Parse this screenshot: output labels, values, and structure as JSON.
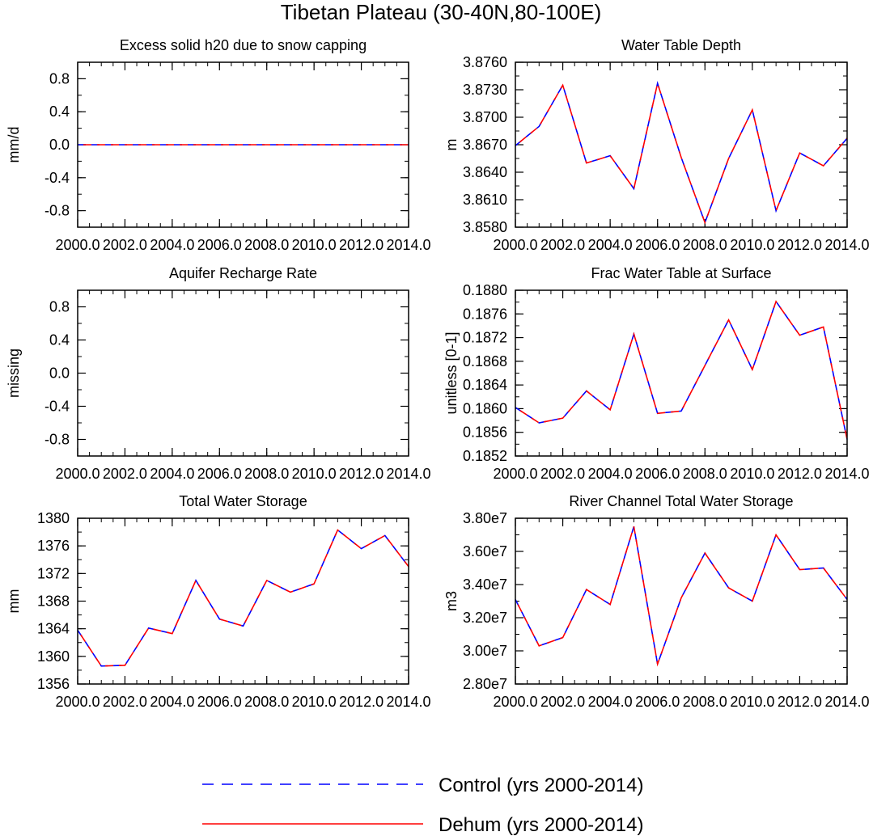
{
  "figure": {
    "title": "Tibetan Plateau (30-40N,80-100E)",
    "legend": [
      {
        "label": "Control (yrs 2000-2014)",
        "color": "#0000ff",
        "style": "dashed"
      },
      {
        "label": "Dehum (yrs 2000-2014)",
        "color": "#ff0000",
        "style": "solid"
      }
    ]
  },
  "chart_data": [
    {
      "type": "line",
      "title": "Excess solid h20 due to snow capping",
      "ylabel": "mm/d",
      "xlim": [
        2000,
        2014
      ],
      "ylim": [
        -1.0,
        1.0
      ],
      "xticks": [
        "2000.0",
        "2002.0",
        "2004.0",
        "2006.0",
        "2008.0",
        "2010.0",
        "2012.0",
        "2014.0"
      ],
      "yticks": [
        -0.8,
        -0.4,
        0.0,
        0.4,
        0.8
      ],
      "ytick_labels": [
        "-0.8",
        "-0.4",
        "0.0",
        "0.4",
        "0.8"
      ],
      "x": [
        2000,
        2001,
        2002,
        2003,
        2004,
        2005,
        2006,
        2007,
        2008,
        2009,
        2010,
        2011,
        2012,
        2013,
        2014
      ],
      "series": [
        {
          "name": "Control (yrs 2000-2014)",
          "values": [
            0,
            0,
            0,
            0,
            0,
            0,
            0,
            0,
            0,
            0,
            0,
            0,
            0,
            0,
            0
          ]
        },
        {
          "name": "Dehum (yrs 2000-2014)",
          "values": [
            0,
            0,
            0,
            0,
            0,
            0,
            0,
            0,
            0,
            0,
            0,
            0,
            0,
            0,
            0
          ]
        }
      ]
    },
    {
      "type": "line",
      "title": "Water Table Depth",
      "ylabel": "m",
      "xlim": [
        2000,
        2014
      ],
      "ylim": [
        3.858,
        3.876
      ],
      "xticks": [
        "2000.0",
        "2002.0",
        "2004.0",
        "2006.0",
        "2008.0",
        "2010.0",
        "2012.0",
        "2014.0"
      ],
      "yticks": [
        3.858,
        3.861,
        3.864,
        3.867,
        3.87,
        3.873,
        3.876
      ],
      "ytick_labels": [
        "3.8580",
        "3.8610",
        "3.8640",
        "3.8670",
        "3.8700",
        "3.8730",
        "3.8760"
      ],
      "x": [
        2000,
        2001,
        2002,
        2003,
        2004,
        2005,
        2006,
        2007,
        2008,
        2009,
        2010,
        2011,
        2012,
        2013,
        2014
      ],
      "series": [
        {
          "name": "Control (yrs 2000-2014)",
          "values": [
            3.8669,
            3.869,
            3.8735,
            3.865,
            3.8658,
            3.8622,
            3.8737,
            3.8656,
            3.8585,
            3.8655,
            3.8708,
            3.8598,
            3.8661,
            3.8647,
            3.8677
          ]
        },
        {
          "name": "Dehum (yrs 2000-2014)",
          "values": [
            3.8669,
            3.869,
            3.8735,
            3.865,
            3.8658,
            3.8622,
            3.8737,
            3.8656,
            3.8585,
            3.8655,
            3.8708,
            3.8598,
            3.8661,
            3.8647,
            3.8677
          ]
        }
      ]
    },
    {
      "type": "line",
      "title": "Aquifer Recharge Rate",
      "ylabel": "missing",
      "xlim": [
        2000,
        2014
      ],
      "ylim": [
        -1.0,
        1.0
      ],
      "xticks": [
        "2000.0",
        "2002.0",
        "2004.0",
        "2006.0",
        "2008.0",
        "2010.0",
        "2012.0",
        "2014.0"
      ],
      "yticks": [
        -0.8,
        -0.4,
        0.0,
        0.4,
        0.8
      ],
      "ytick_labels": [
        "-0.8",
        "-0.4",
        "0.0",
        "0.4",
        "0.8"
      ],
      "x": [],
      "series": []
    },
    {
      "type": "line",
      "title": "Frac Water Table at Surface",
      "ylabel": "unitless [0-1]",
      "xlim": [
        2000,
        2014
      ],
      "ylim": [
        0.1852,
        0.188
      ],
      "xticks": [
        "2000.0",
        "2002.0",
        "2004.0",
        "2006.0",
        "2008.0",
        "2010.0",
        "2012.0",
        "2014.0"
      ],
      "yticks": [
        0.1852,
        0.1856,
        0.186,
        0.1864,
        0.1868,
        0.1872,
        0.1876,
        0.188
      ],
      "ytick_labels": [
        "0.1852",
        "0.1856",
        "0.1860",
        "0.1864",
        "0.1868",
        "0.1872",
        "0.1876",
        "0.1880"
      ],
      "x": [
        2000,
        2001,
        2002,
        2003,
        2004,
        2005,
        2006,
        2007,
        2008,
        2009,
        2010,
        2011,
        2012,
        2013,
        2014
      ],
      "series": [
        {
          "name": "Control (yrs 2000-2014)",
          "values": [
            0.18602,
            0.18576,
            0.18584,
            0.1863,
            0.18598,
            0.18726,
            0.18592,
            0.18596,
            0.18673,
            0.1875,
            0.18666,
            0.18781,
            0.18724,
            0.18738,
            0.18548
          ]
        },
        {
          "name": "Dehum (yrs 2000-2014)",
          "values": [
            0.18602,
            0.18576,
            0.18584,
            0.1863,
            0.18598,
            0.18726,
            0.18592,
            0.18596,
            0.18673,
            0.1875,
            0.18666,
            0.18781,
            0.18724,
            0.18738,
            0.18548
          ]
        }
      ]
    },
    {
      "type": "line",
      "title": "Total Water Storage",
      "ylabel": "mm",
      "xlim": [
        2000,
        2014
      ],
      "ylim": [
        1356,
        1380
      ],
      "xticks": [
        "2000.0",
        "2002.0",
        "2004.0",
        "2006.0",
        "2008.0",
        "2010.0",
        "2012.0",
        "2014.0"
      ],
      "yticks": [
        1356,
        1360,
        1364,
        1368,
        1372,
        1376,
        1380
      ],
      "ytick_labels": [
        "1356",
        "1360",
        "1364",
        "1368",
        "1372",
        "1376",
        "1380"
      ],
      "x": [
        2000,
        2001,
        2002,
        2003,
        2004,
        2005,
        2006,
        2007,
        2008,
        2009,
        2010,
        2011,
        2012,
        2013,
        2014
      ],
      "series": [
        {
          "name": "Control (yrs 2000-2014)",
          "values": [
            1363.8,
            1358.6,
            1358.7,
            1364.1,
            1363.3,
            1371.0,
            1365.4,
            1364.4,
            1371.0,
            1369.3,
            1370.5,
            1378.3,
            1375.6,
            1377.5,
            1373.0
          ]
        },
        {
          "name": "Dehum (yrs 2000-2014)",
          "values": [
            1363.8,
            1358.6,
            1358.7,
            1364.1,
            1363.3,
            1371.0,
            1365.4,
            1364.4,
            1371.0,
            1369.3,
            1370.5,
            1378.3,
            1375.6,
            1377.5,
            1373.0
          ]
        }
      ]
    },
    {
      "type": "line",
      "title": "River Channel Total Water Storage",
      "ylabel": "m3",
      "xlim": [
        2000,
        2014
      ],
      "ylim": [
        28000000.0,
        38000000.0
      ],
      "xticks": [
        "2000.0",
        "2002.0",
        "2004.0",
        "2006.0",
        "2008.0",
        "2010.0",
        "2012.0",
        "2014.0"
      ],
      "yticks": [
        28000000.0,
        30000000.0,
        32000000.0,
        34000000.0,
        36000000.0,
        38000000.0
      ],
      "ytick_labels": [
        "2.80e7",
        "3.00e7",
        "3.20e7",
        "3.40e7",
        "3.60e7",
        "3.80e7"
      ],
      "x": [
        2000,
        2001,
        2002,
        2003,
        2004,
        2005,
        2006,
        2007,
        2008,
        2009,
        2010,
        2011,
        2012,
        2013,
        2014
      ],
      "series": [
        {
          "name": "Control (yrs 2000-2014)",
          "values": [
            33100000.0,
            30300000.0,
            30800000.0,
            33700000.0,
            32800000.0,
            37500000.0,
            29200000.0,
            33200000.0,
            35900000.0,
            33800000.0,
            33000000.0,
            37000000.0,
            34900000.0,
            35000000.0,
            33100000.0
          ]
        },
        {
          "name": "Dehum (yrs 2000-2014)",
          "values": [
            33100000.0,
            30300000.0,
            30800000.0,
            33700000.0,
            32800000.0,
            37500000.0,
            29200000.0,
            33200000.0,
            35900000.0,
            33800000.0,
            33000000.0,
            37000000.0,
            34900000.0,
            35000000.0,
            33100000.0
          ]
        }
      ]
    }
  ]
}
